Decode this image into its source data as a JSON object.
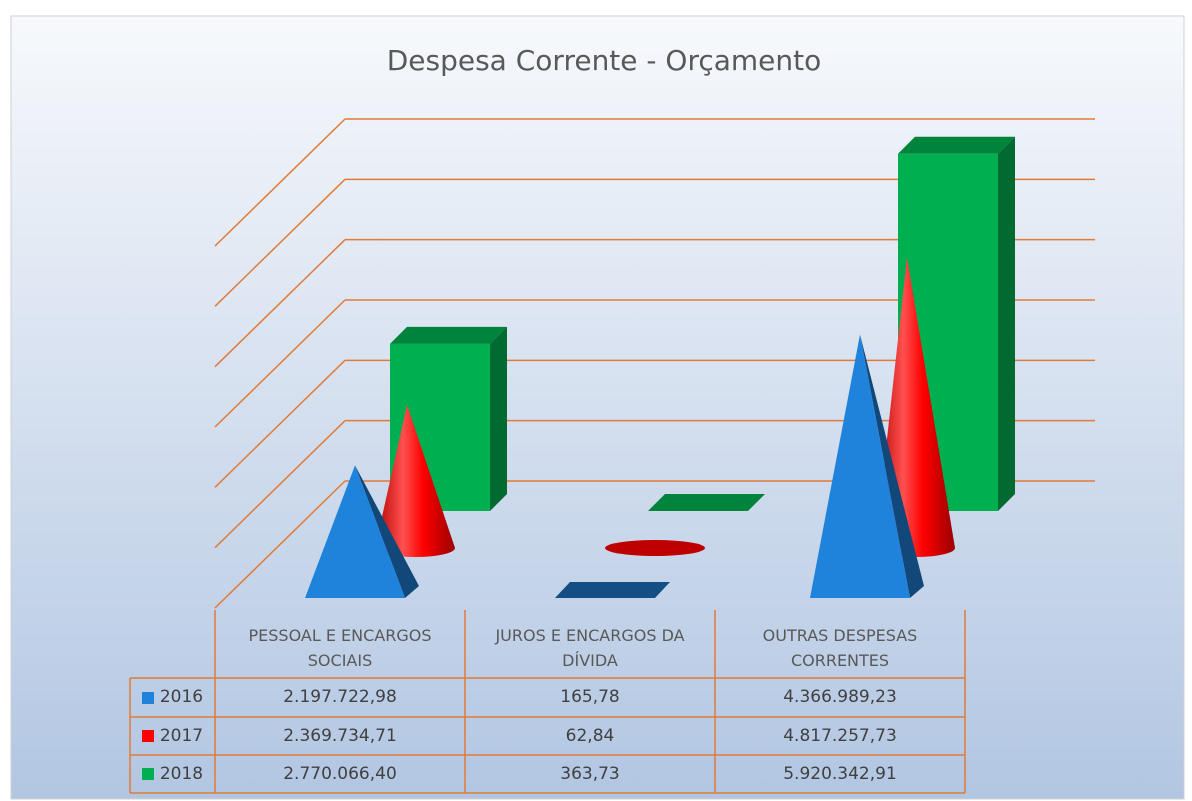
{
  "chart_data": {
    "type": "bar3d",
    "title": "Despesa Corrente - Orçamento",
    "categories": [
      "PESSOAL E ENCARGOS SOCIAIS",
      "JUROS E ENCARGOS DA DÍVIDA",
      "OUTRAS DESPESAS CORRENTES"
    ],
    "series": [
      {
        "name": "2016",
        "color": "#1f83dc",
        "values": [
          2197722.98,
          165.78,
          4366989.23
        ],
        "value_labels": [
          "2.197.722,98",
          "165,78",
          "4.366.989,23"
        ]
      },
      {
        "name": "2017",
        "color": "#ff0000",
        "values": [
          2369734.71,
          62.84,
          4817257.73
        ],
        "value_labels": [
          "2.369.734,71",
          "62,84",
          "4.817.257,73"
        ]
      },
      {
        "name": "2018",
        "color": "#00b050",
        "values": [
          2770066.4,
          363.73,
          5920342.91
        ],
        "value_labels": [
          "2.770.066,40",
          "363,73",
          "5.920.342,91"
        ]
      }
    ],
    "ylim": [
      0,
      6000000
    ],
    "yticks": [
      0,
      1000000,
      2000000,
      3000000,
      4000000,
      5000000,
      6000000
    ],
    "grid": true
  }
}
